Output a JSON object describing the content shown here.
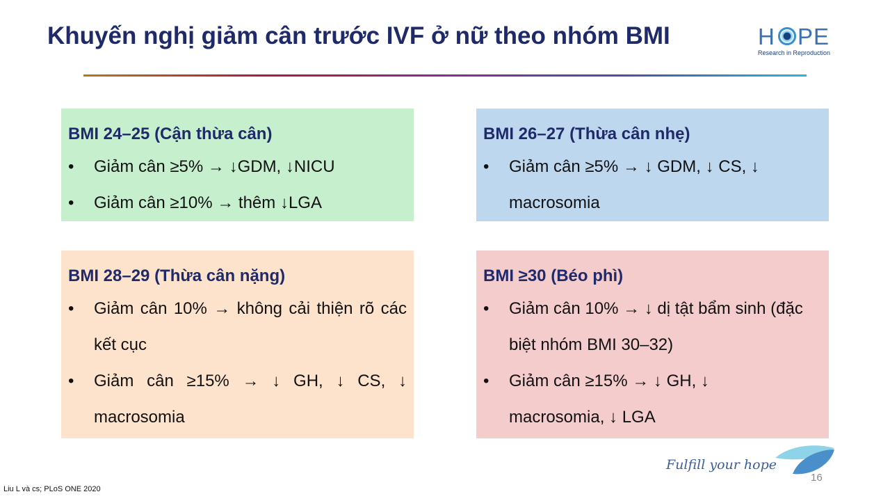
{
  "title": "Khuyến nghị giảm cân trước IVF ở nữ theo nhóm BMI",
  "logo": {
    "word_left": "H",
    "word_right": "PE",
    "tagline": "Research in Reproduction"
  },
  "boxes": [
    {
      "heading": "BMI 24–25 (Cận thừa cân)",
      "items": [
        "Giảm cân ≥5%  → ↓GDM, ↓NICU",
        "Giảm cân ≥10% → thêm ↓LGA"
      ]
    },
    {
      "heading": "BMI 26–27 (Thừa cân nhẹ)",
      "items": [
        "Giảm cân ≥5% → ↓ GDM, ↓ CS, ↓ macrosomia"
      ]
    },
    {
      "heading": "BMI 28–29 (Thừa cân nặng)",
      "items": [
        "Giảm cân 10% → không cải thiện rõ các kết cục",
        "Giảm cân ≥15% → ↓ GH, ↓ CS, ↓ macrosomia"
      ]
    },
    {
      "heading": "BMI ≥30 (Béo phì)",
      "items": [
        "Giảm cân 10% → ↓ dị tật bẩm sinh (đặc biệt nhóm BMI 30–32)",
        "Giảm cân ≥15% → ↓ GH, ↓ macrosomia, ↓ LGA"
      ]
    }
  ],
  "footer": {
    "slogan": "Fulfill your hope",
    "page": "16",
    "reference": "Liu L và cs; PLoS ONE 2020"
  }
}
